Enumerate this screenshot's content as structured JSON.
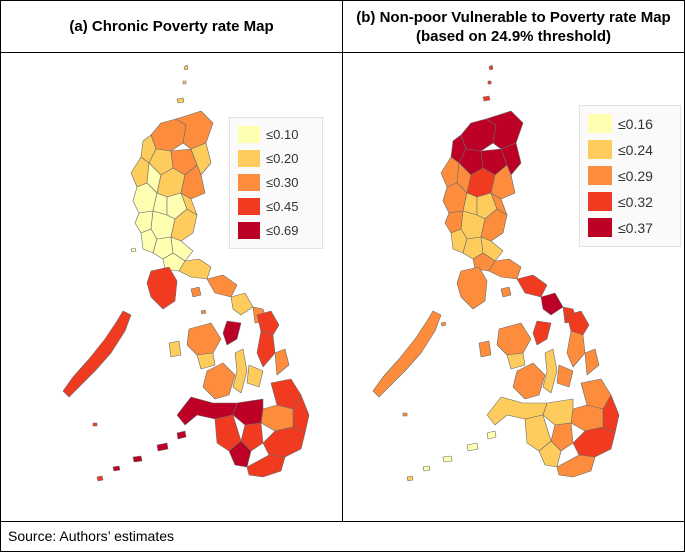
{
  "panels": [
    {
      "title": "(a) Chronic Poverty rate Map",
      "legend": [
        {
          "label": "≤0.10",
          "color": "#ffffb2"
        },
        {
          "label": "≤0.20",
          "color": "#fecc5c"
        },
        {
          "label": "≤0.30",
          "color": "#fd8d3c"
        },
        {
          "label": "≤0.45",
          "color": "#f03b20"
        },
        {
          "label": "≤0.69",
          "color": "#bd0026"
        }
      ]
    },
    {
      "title": "(b) Non-poor Vulnerable to Poverty rate Map (based on 24.9% threshold)",
      "legend": [
        {
          "label": "≤0.16",
          "color": "#ffffb2"
        },
        {
          "label": "≤0.24",
          "color": "#fecc5c"
        },
        {
          "label": "≤0.29",
          "color": "#fd8d3c"
        },
        {
          "label": "≤0.32",
          "color": "#f03b20"
        },
        {
          "label": "≤0.37",
          "color": "#bd0026"
        }
      ]
    }
  ],
  "source": "Source: Authors’ estimates"
}
